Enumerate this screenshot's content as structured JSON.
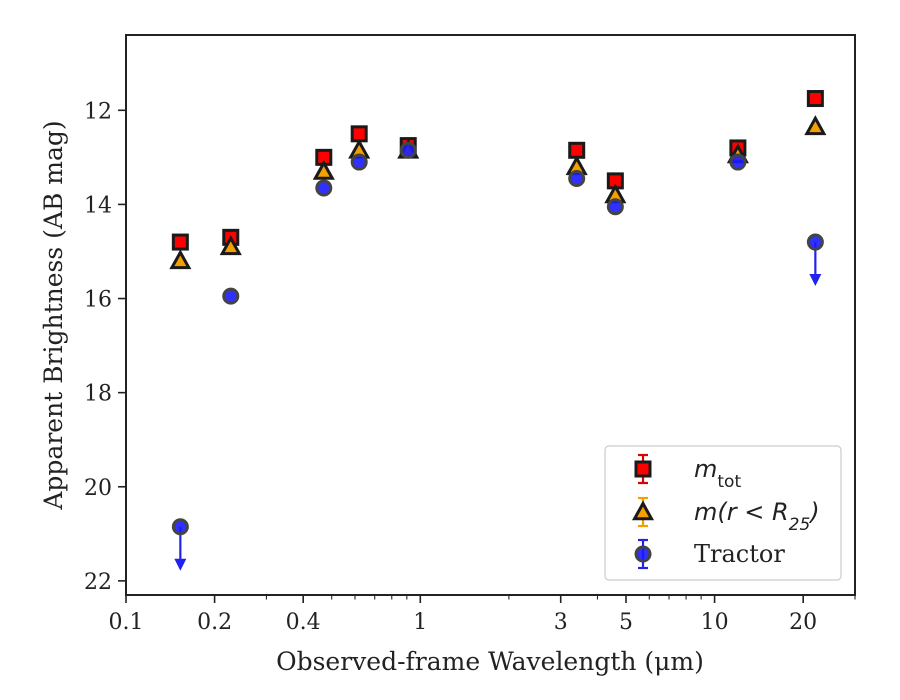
{
  "chart_data": {
    "type": "scatter",
    "xlabel": "Observed-frame Wavelength (μm)",
    "ylabel": "Apparent Brightness (AB mag)",
    "xscale": "log",
    "xlim": [
      0.1,
      30
    ],
    "ylim": [
      22.3,
      10.4
    ],
    "y_inverted": true,
    "xticks": [
      0.1,
      0.2,
      0.4,
      1,
      3,
      5,
      10,
      20
    ],
    "xtick_labels": [
      "0.1",
      "0.2",
      "0.4",
      "1",
      "3",
      "5",
      "10",
      "20"
    ],
    "yticks": [
      12,
      14,
      16,
      18,
      20,
      22
    ],
    "ytick_labels": [
      "12",
      "14",
      "16",
      "18",
      "20",
      "22"
    ],
    "grid": false,
    "legend_position": "lower-right",
    "series": [
      {
        "name": "m_tot",
        "legend_main": "m",
        "legend_sub": "tot",
        "marker": "square",
        "face_color": "#ff0000",
        "edge_color": "#1a1a1a",
        "error_color": "#e00000",
        "points": [
          {
            "x": 0.153,
            "y": 14.8
          },
          {
            "x": 0.227,
            "y": 14.7
          },
          {
            "x": 0.47,
            "y": 13.0
          },
          {
            "x": 0.62,
            "y": 12.5
          },
          {
            "x": 0.91,
            "y": 12.75
          },
          {
            "x": 3.4,
            "y": 12.85
          },
          {
            "x": 4.6,
            "y": 13.5
          },
          {
            "x": 12.0,
            "y": 12.8
          },
          {
            "x": 22.0,
            "y": 11.75
          }
        ]
      },
      {
        "name": "m(r < R_25)",
        "legend_main": "m(r < R",
        "legend_sub": "25",
        "legend_tail": ")",
        "marker": "triangle",
        "face_color": "#f5a000",
        "edge_color": "#1a1a1a",
        "error_color": "#f5a000",
        "points": [
          {
            "x": 0.153,
            "y": 15.2
          },
          {
            "x": 0.227,
            "y": 14.9
          },
          {
            "x": 0.47,
            "y": 13.3
          },
          {
            "x": 0.62,
            "y": 12.85
          },
          {
            "x": 0.91,
            "y": 12.85
          },
          {
            "x": 3.4,
            "y": 13.2
          },
          {
            "x": 4.6,
            "y": 13.8
          },
          {
            "x": 12.0,
            "y": 12.95
          },
          {
            "x": 22.0,
            "y": 12.35
          }
        ]
      },
      {
        "name": "Tractor",
        "marker": "circle",
        "face_color": "#1a1aff",
        "edge_color": "#444444",
        "error_color": "#2222ee",
        "points": [
          {
            "x": 0.153,
            "y": 20.85,
            "upper_limit": true
          },
          {
            "x": 0.227,
            "y": 15.95
          },
          {
            "x": 0.47,
            "y": 13.65
          },
          {
            "x": 0.62,
            "y": 13.1
          },
          {
            "x": 0.91,
            "y": 12.85
          },
          {
            "x": 3.4,
            "y": 13.45
          },
          {
            "x": 4.6,
            "y": 14.05
          },
          {
            "x": 12.0,
            "y": 13.1
          },
          {
            "x": 22.0,
            "y": 14.8,
            "upper_limit": true
          }
        ]
      }
    ]
  }
}
